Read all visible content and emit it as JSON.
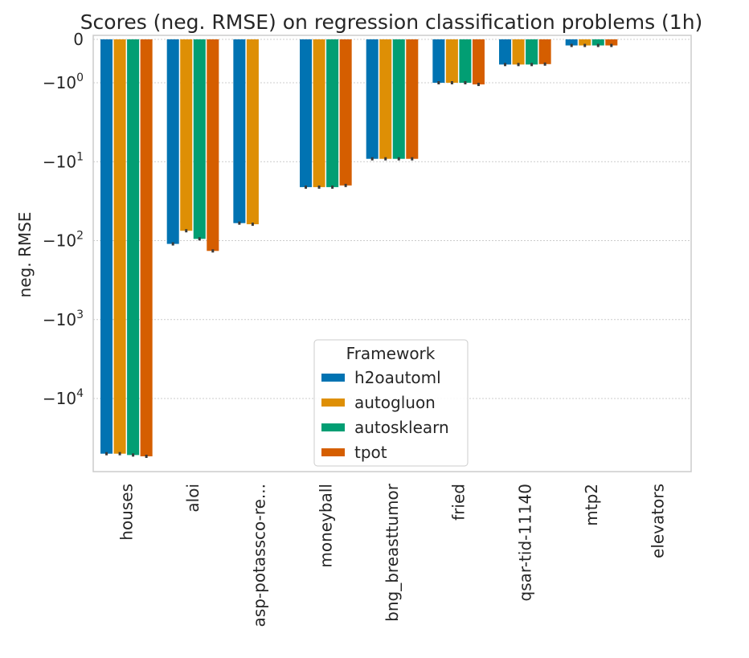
{
  "chart_data": {
    "type": "bar",
    "title": "Scores (neg. RMSE) on  regression classification problems (1h)",
    "xlabel": "",
    "ylabel": "neg. RMSE",
    "yscale": "symlog",
    "ylim": [
      -60000,
      0
    ],
    "yticks": [
      {
        "value": 0,
        "base": "0",
        "exp": ""
      },
      {
        "value": -1,
        "base": "−10",
        "exp": "0"
      },
      {
        "value": -10,
        "base": "−10",
        "exp": "1"
      },
      {
        "value": -100,
        "base": "−10",
        "exp": "2"
      },
      {
        "value": -1000,
        "base": "−10",
        "exp": "3"
      },
      {
        "value": -10000,
        "base": "−10",
        "exp": "4"
      }
    ],
    "grid": true,
    "legend_title": "Framework",
    "legend_position": "lower-center",
    "categories": [
      "houses",
      "aloi",
      "asp-potassco-re...",
      "moneyball",
      "bng_breasttumor",
      "fried",
      "qsar-tid-11140",
      "mtp2",
      "elevators"
    ],
    "series": [
      {
        "name": "h2oautoml",
        "color": "#0173b2",
        "values": [
          -50000,
          -110,
          -60,
          -21,
          -9.2,
          -1.0,
          -0.58,
          -0.14,
          null
        ]
      },
      {
        "name": "autogluon",
        "color": "#de8f05",
        "values": [
          -50000,
          -75,
          -62,
          -21,
          -9.2,
          -1.0,
          -0.58,
          -0.14,
          null
        ]
      },
      {
        "name": "autosklearn",
        "color": "#029e73",
        "values": [
          -52000,
          -95,
          null,
          -21,
          -9.2,
          -1.0,
          -0.58,
          -0.14,
          null
        ]
      },
      {
        "name": "tpot",
        "color": "#d55e00",
        "values": [
          -54000,
          -135,
          null,
          -20,
          -9.2,
          -1.05,
          -0.57,
          -0.14,
          null
        ]
      }
    ]
  }
}
